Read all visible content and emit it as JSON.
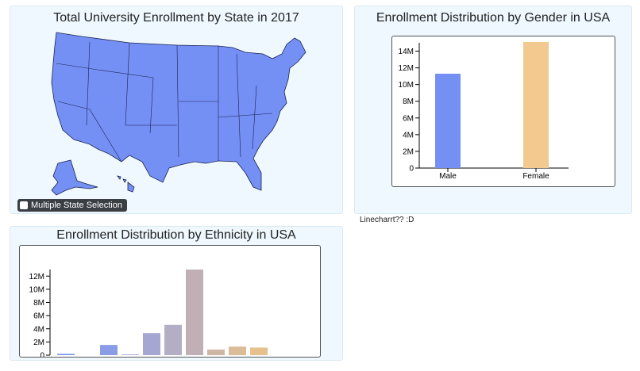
{
  "map_panel": {
    "title": "Total University Enrollment by State in 2017",
    "fill_color": "#7590f5",
    "checkbox_label": "Multiple State Selection",
    "checked": false
  },
  "note": "Linecharrt?? :D",
  "chart_data": [
    {
      "type": "bar",
      "title": "Enrollment Distribution by Gender in USA",
      "categories": [
        "Male",
        "Female"
      ],
      "values": [
        11300000,
        15100000
      ],
      "colors": [
        "#7590f5",
        "#f2c98e"
      ],
      "ylim": [
        0,
        15000000
      ],
      "yticks": [
        "0",
        "2M",
        "4M",
        "6M",
        "8M",
        "10M",
        "12M",
        "14M"
      ]
    },
    {
      "type": "bar",
      "title": "Enrollment Distribution by Ethnicity in USA",
      "values": [
        200000,
        0,
        1550000,
        100000,
        3350000,
        4600000,
        13000000,
        850000,
        1300000,
        1150000
      ],
      "colors": [
        "#7d96ec",
        "#8299e8",
        "#8b9ce6",
        "#9aa1dc",
        "#a6a6d2",
        "#b3aec4",
        "#c0b0b6",
        "#cfb6a4",
        "#dcbc98",
        "#e6c18d"
      ],
      "ylim": [
        0,
        13000000
      ],
      "yticks": [
        "0",
        "2M",
        "4M",
        "6M",
        "8M",
        "10M",
        "12M"
      ]
    }
  ]
}
